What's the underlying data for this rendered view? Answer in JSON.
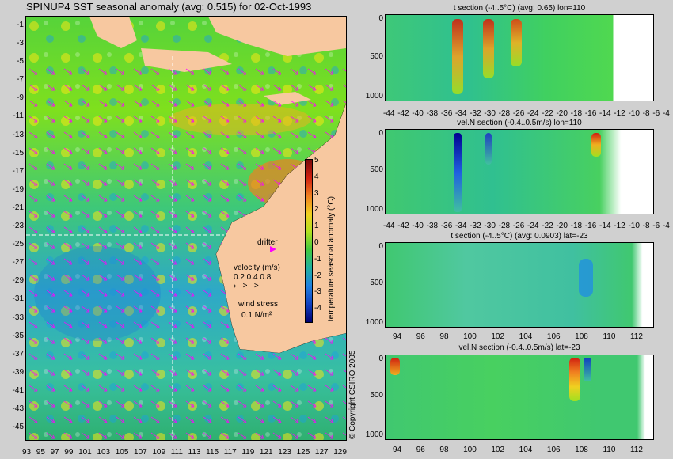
{
  "main_title": "SPINUP4 SST seasonal anomaly (avg: 0.515) for 02-Oct-1993",
  "map": {
    "y_ticks": [
      "-1",
      "-3",
      "-5",
      "-7",
      "-9",
      "-11",
      "-13",
      "-15",
      "-17",
      "-19",
      "-21",
      "-23",
      "-25",
      "-27",
      "-29",
      "-31",
      "-33",
      "-35",
      "-37",
      "-39",
      "-41",
      "-43",
      "-45"
    ],
    "x_ticks": [
      "93",
      "95",
      "97",
      "99",
      "101",
      "103",
      "105",
      "107",
      "109",
      "111",
      "113",
      "115",
      "117",
      "119",
      "121",
      "123",
      "125",
      "127",
      "129"
    ],
    "colorbar": {
      "label": "temperature seasonal anomaly (°C)",
      "ticks": [
        "5",
        "4",
        "3",
        "2",
        "1",
        "0",
        "-1",
        "-2",
        "-3",
        "-4"
      ]
    },
    "legend": {
      "drifter_label": "drifter",
      "velocity_label": "velocity (m/s)",
      "velocity_scale": "0.2 0.4 0.8",
      "wind_label": "wind stress",
      "wind_scale": "0.1 N/m²"
    },
    "colors": {
      "land": "#f7c8a0",
      "arrows": "#ff00ff",
      "drifter": "#ff00ff",
      "sections": "#ffffff"
    }
  },
  "panels": [
    {
      "title": "t section (-4..5°C) (avg: 0.65) lon=110",
      "y_ticks": [
        "0",
        "500",
        "1000"
      ],
      "x_ticks": [
        "-44",
        "-42",
        "-40",
        "-38",
        "-36",
        "-34",
        "-32",
        "-30",
        "-28",
        "-26",
        "-24",
        "-22",
        "-20",
        "-18",
        "-16",
        "-14",
        "-12",
        "-10",
        "-8",
        "-6",
        "-4"
      ]
    },
    {
      "title": "vel.N section (-0.4..0.5m/s) lon=110",
      "y_ticks": [
        "0",
        "500",
        "1000"
      ],
      "x_ticks": [
        "-44",
        "-42",
        "-40",
        "-38",
        "-36",
        "-34",
        "-32",
        "-30",
        "-28",
        "-26",
        "-24",
        "-22",
        "-20",
        "-18",
        "-16",
        "-14",
        "-12",
        "-10",
        "-8",
        "-6",
        "-4"
      ]
    },
    {
      "title": "t section (-4..5°C) (avg: 0.0903) lat=-23",
      "y_ticks": [
        "0",
        "500",
        "1000"
      ],
      "x_ticks": [
        "94",
        "96",
        "98",
        "100",
        "102",
        "104",
        "106",
        "108",
        "110",
        "112"
      ]
    },
    {
      "title": "vel.N section (-0.4..0.5m/s) lat=-23",
      "y_ticks": [
        "0",
        "500",
        "1000"
      ],
      "x_ticks": [
        "94",
        "96",
        "98",
        "100",
        "102",
        "104",
        "106",
        "108",
        "110",
        "112"
      ]
    }
  ],
  "copyright": "© Copyright CSIRO 2005"
}
